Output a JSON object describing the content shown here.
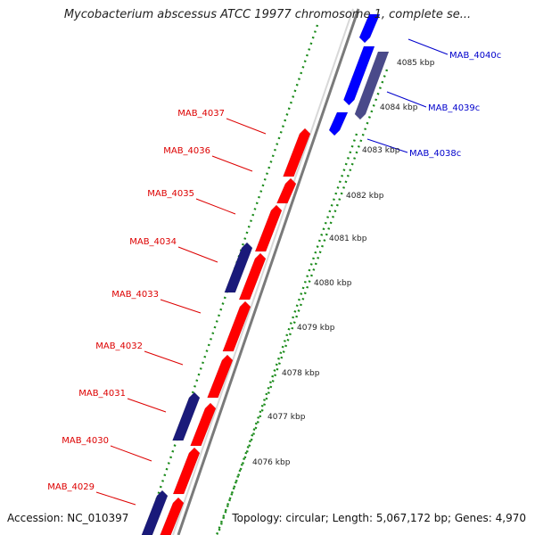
{
  "title": "Mycobacterium abscessus ATCC 19977 chromosome 1, complete se...",
  "footer": {
    "accession": "Accession: NC_010397",
    "summary": "Topology: circular; Length: 5,067,172 bp; Genes: 4,970"
  },
  "colors": {
    "forward_gene": "#ff0000",
    "reverse_gene": "#0000ff",
    "other_gene": "#1a1a7a",
    "muted_gene": "#4a4a8a",
    "forward_label": "#dd0000",
    "reverse_label": "#0000cc",
    "tick_dots": "#1a8a1a",
    "backbone": "#7a7a7a"
  },
  "scale_labels": [
    "4076 kbp",
    "4077 kbp",
    "4078 kbp",
    "4079 kbp",
    "4080 kbp",
    "4081 kbp",
    "4082 kbp",
    "4083 kbp",
    "4084 kbp",
    "4085 kbp"
  ],
  "forward_gene_labels": [
    "MAB_4037",
    "MAB_4036",
    "MAB_4035",
    "MAB_4034",
    "MAB_4033",
    "MAB_4032",
    "MAB_4031",
    "MAB_4030",
    "MAB_4029"
  ],
  "reverse_gene_labels": [
    "MAB_4040c",
    "MAB_4039c",
    "MAB_4038c"
  ]
}
